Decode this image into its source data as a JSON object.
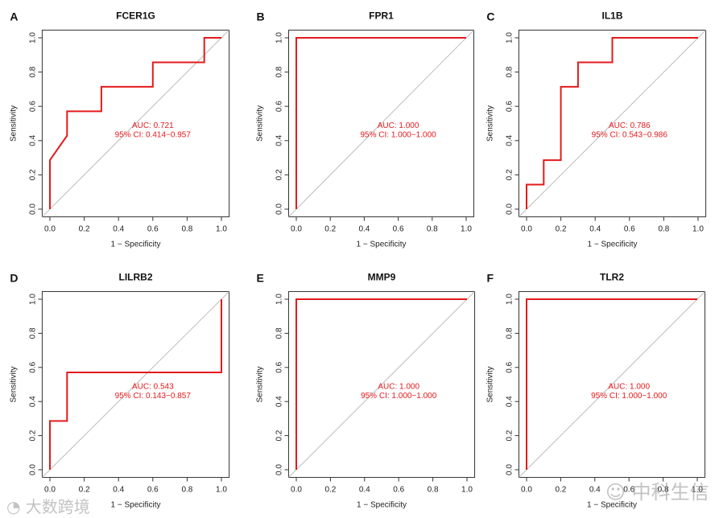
{
  "chart_data": [
    {
      "panel": "A",
      "type": "line",
      "title": "FCER1G",
      "xlabel": "1 − Specificity",
      "ylabel": "Sensitivity",
      "xlim": [
        0,
        1
      ],
      "ylim": [
        0,
        1
      ],
      "x": [
        0,
        0,
        0.1,
        0.1,
        0.3,
        0.3,
        0.6,
        0.6,
        0.9,
        0.9,
        1.0
      ],
      "y": [
        0,
        0.286,
        0.429,
        0.571,
        0.571,
        0.714,
        0.714,
        0.857,
        0.857,
        1.0,
        1.0
      ],
      "auc": "AUC: 0.721",
      "ci": "95% CI: 0.414−0.957"
    },
    {
      "panel": "B",
      "type": "line",
      "title": "FPR1",
      "xlabel": "1 − Specificity",
      "ylabel": "Sensitivity",
      "xlim": [
        0,
        1
      ],
      "ylim": [
        0,
        1
      ],
      "x": [
        0,
        0,
        1
      ],
      "y": [
        0,
        1,
        1
      ],
      "auc": "AUC: 1.000",
      "ci": "95% CI: 1.000−1.000"
    },
    {
      "panel": "C",
      "type": "line",
      "title": "IL1B",
      "xlabel": "1 − Specificity",
      "ylabel": "Sensitivity",
      "xlim": [
        0,
        1
      ],
      "ylim": [
        0,
        1
      ],
      "x": [
        0,
        0,
        0.1,
        0.1,
        0.2,
        0.2,
        0.3,
        0.3,
        0.5,
        0.5,
        1.0
      ],
      "y": [
        0,
        0.143,
        0.143,
        0.286,
        0.286,
        0.714,
        0.714,
        0.857,
        0.857,
        1.0,
        1.0
      ],
      "auc": "AUC: 0.786",
      "ci": "95% CI: 0.543−0.986"
    },
    {
      "panel": "D",
      "type": "line",
      "title": "LILRB2",
      "xlabel": "1 − Specificity",
      "ylabel": "Sensitivity",
      "xlim": [
        0,
        1
      ],
      "ylim": [
        0,
        1
      ],
      "x": [
        0,
        0,
        0.1,
        0.1,
        1.0,
        1.0
      ],
      "y": [
        0,
        0.286,
        0.286,
        0.571,
        0.571,
        1.0
      ],
      "auc": "AUC: 0.543",
      "ci": "95% CI: 0.143−0.857"
    },
    {
      "panel": "E",
      "type": "line",
      "title": "MMP9",
      "xlabel": "1 − Specificity",
      "ylabel": "Sensitivity",
      "xlim": [
        0,
        1
      ],
      "ylim": [
        0,
        1
      ],
      "x": [
        0,
        0,
        1
      ],
      "y": [
        0,
        1,
        1
      ],
      "auc": "AUC: 1.000",
      "ci": "95% CI: 1.000−1.000"
    },
    {
      "panel": "F",
      "type": "line",
      "title": "TLR2",
      "xlabel": "1 − Specificity",
      "ylabel": "Sensitivity",
      "xlim": [
        0,
        1
      ],
      "ylim": [
        0,
        1
      ],
      "x": [
        0,
        0,
        1
      ],
      "y": [
        0,
        1,
        1
      ],
      "auc": "AUC: 1.000",
      "ci": "95% CI: 1.000−1.000"
    }
  ],
  "ticks": [
    "0.0",
    "0.2",
    "0.4",
    "0.6",
    "0.8",
    "1.0"
  ],
  "colors": {
    "roc": "#e41a1c",
    "diag": "#bdbdbd",
    "axis": "#333333"
  },
  "watermarks": [
    "大数跨境",
    "中科生信"
  ]
}
